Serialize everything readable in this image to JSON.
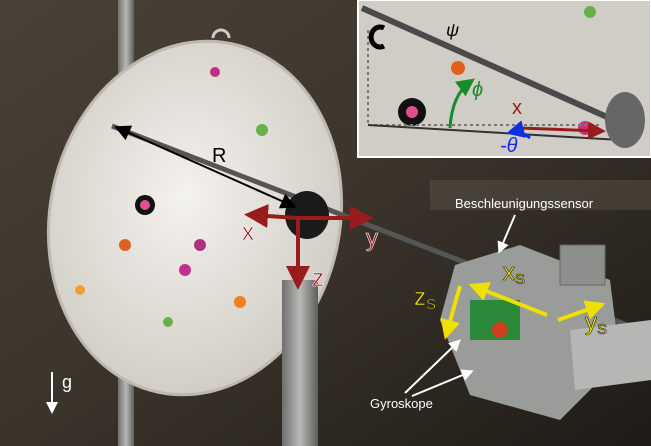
{
  "main": {
    "labels": {
      "R": "R",
      "x": "x",
      "y": "y",
      "z": "z",
      "g": "g"
    },
    "sensor": {
      "xs": {
        "base": "x",
        "sub": "S"
      },
      "ys": {
        "base": "y",
        "sub": "S"
      },
      "zs": {
        "base": "z",
        "sub": "S"
      }
    },
    "annotations": {
      "accelerometer": "Beschleunigungssensor",
      "gyroscopes": "Gyroskope"
    }
  },
  "inset": {
    "psi": "ψ",
    "phi": "ϕ",
    "x": "x",
    "theta": "-θ"
  }
}
